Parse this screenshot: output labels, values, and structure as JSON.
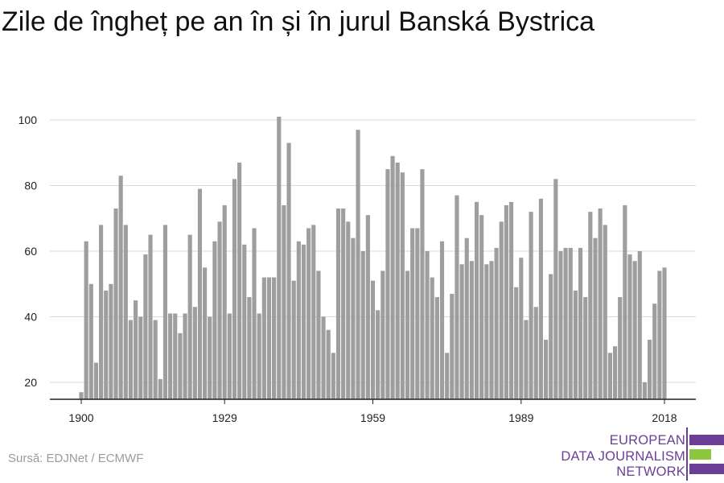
{
  "title": "Zile de îngheț pe an în și în jurul Banská Bystrica",
  "source": "Sursă: EDJNet / ECMWF",
  "logo": {
    "lines": [
      "EUROPEAN",
      "DATA JOURNALISM",
      "NETWORK"
    ],
    "colors": {
      "purple": "#6b3f98",
      "green": "#8dc63f"
    }
  },
  "colors": {
    "bar": "#9e9e9e",
    "grid": "#d9d9d9",
    "axis": "#222222",
    "text": "#222222"
  },
  "chart_data": {
    "type": "bar",
    "title": "Zile de îngheț pe an în și în jurul Banská Bystrica",
    "xlabel": "",
    "ylabel": "",
    "x_ticks": [
      1900,
      1929,
      1959,
      1989,
      2018
    ],
    "y_ticks": [
      20,
      40,
      60,
      80,
      100
    ],
    "ylim": [
      15,
      102
    ],
    "grid": true,
    "x": [
      1900,
      1901,
      1902,
      1903,
      1904,
      1905,
      1906,
      1907,
      1908,
      1909,
      1910,
      1911,
      1912,
      1913,
      1914,
      1915,
      1916,
      1917,
      1918,
      1919,
      1920,
      1921,
      1922,
      1923,
      1924,
      1925,
      1926,
      1927,
      1928,
      1929,
      1930,
      1931,
      1932,
      1933,
      1934,
      1935,
      1936,
      1937,
      1938,
      1939,
      1940,
      1941,
      1942,
      1943,
      1944,
      1945,
      1946,
      1947,
      1948,
      1949,
      1950,
      1951,
      1952,
      1953,
      1954,
      1955,
      1956,
      1957,
      1958,
      1959,
      1960,
      1961,
      1962,
      1963,
      1964,
      1965,
      1966,
      1967,
      1968,
      1969,
      1970,
      1971,
      1972,
      1973,
      1974,
      1975,
      1976,
      1977,
      1978,
      1979,
      1980,
      1981,
      1982,
      1983,
      1984,
      1985,
      1986,
      1987,
      1988,
      1989,
      1990,
      1991,
      1992,
      1993,
      1994,
      1995,
      1996,
      1997,
      1998,
      1999,
      2000,
      2001,
      2002,
      2003,
      2004,
      2005,
      2006,
      2007,
      2008,
      2009,
      2010,
      2011,
      2012,
      2013,
      2014,
      2015,
      2016,
      2017,
      2018
    ],
    "values": [
      17,
      63,
      50,
      26,
      68,
      48,
      50,
      73,
      83,
      68,
      39,
      45,
      40,
      59,
      65,
      39,
      21,
      68,
      41,
      41,
      35,
      41,
      65,
      43,
      79,
      55,
      40,
      63,
      69,
      74,
      41,
      82,
      87,
      62,
      46,
      67,
      41,
      52,
      52,
      52,
      101,
      74,
      93,
      51,
      63,
      62,
      67,
      68,
      54,
      40,
      36,
      29,
      73,
      73,
      69,
      64,
      97,
      60,
      71,
      51,
      42,
      54,
      85,
      89,
      87,
      84,
      54,
      67,
      67,
      85,
      60,
      52,
      46,
      63,
      29,
      47,
      77,
      56,
      64,
      57,
      75,
      71,
      56,
      57,
      61,
      69,
      74,
      75,
      49,
      58,
      39,
      72,
      43,
      76,
      33,
      53,
      82,
      60,
      61,
      61,
      48,
      61,
      46,
      72,
      64,
      73,
      68,
      29,
      31,
      46,
      74,
      59,
      57,
      60,
      20,
      33,
      44,
      54,
      55
    ]
  }
}
